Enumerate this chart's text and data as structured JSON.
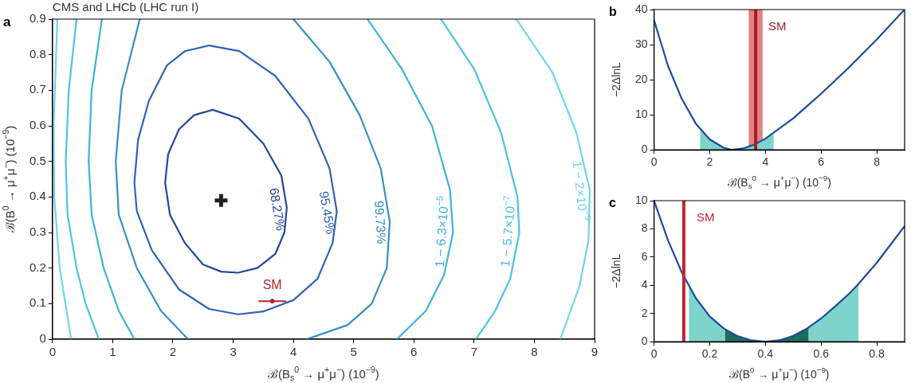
{
  "chart_data": [
    {
      "type": "line",
      "title": "CMS and LHCb (LHC run I)",
      "annotations": [
        "a"
      ],
      "xlabel": "ℬ(B$_{s}$$^{0}$ → μ$^{+}$μ$^{−}$) (10$^{−9}$)",
      "ylabel": "ℬ(B$^{0}$ → μ$^{+}$μ$^{−}$) (10$^{−9}$)",
      "xlim": [
        0,
        9
      ],
      "xticks": [
        0,
        1,
        2,
        3,
        4,
        5,
        6,
        7,
        8,
        9
      ],
      "ylim": [
        0,
        0.9
      ],
      "yticks": [
        0,
        0.1,
        0.2,
        0.3,
        0.4,
        0.5,
        0.6,
        0.7,
        0.8,
        0.9
      ],
      "marker": "none",
      "line_style": "solid",
      "series": [
        {
          "name": "68.27%",
          "color": "#23489a",
          "x": [
            1.87,
            1.92,
            2.1,
            2.35,
            2.66,
            3.1,
            3.5,
            3.8,
            3.89,
            null,
            1.87,
            1.95,
            2.2,
            2.5,
            2.8,
            3.08,
            3.4,
            3.7,
            3.85,
            3.89
          ],
          "values": [
            0.44,
            0.52,
            0.59,
            0.63,
            0.645,
            0.62,
            0.55,
            0.46,
            0.37,
            null,
            0.44,
            0.35,
            0.27,
            0.21,
            0.19,
            0.187,
            0.2,
            0.24,
            0.3,
            0.37
          ]
        },
        {
          "name": "95.45%",
          "color": "#2f63b4",
          "x": [
            1.36,
            1.42,
            1.6,
            1.9,
            2.2,
            2.6,
            3.1,
            3.7,
            4.25,
            4.6,
            4.72,
            null,
            1.36,
            1.4,
            1.65,
            2.1,
            2.6,
            3.08,
            3.5,
            4.0,
            4.4,
            4.65,
            4.72
          ],
          "values": [
            0.44,
            0.56,
            0.67,
            0.77,
            0.81,
            0.826,
            0.81,
            0.74,
            0.62,
            0.48,
            0.36,
            null,
            0.44,
            0.36,
            0.25,
            0.14,
            0.085,
            0.07,
            0.078,
            0.11,
            0.17,
            0.27,
            0.36
          ]
        },
        {
          "name": "99.73%",
          "color": "#3690c7",
          "x": [
            1.45,
            1.15,
            1.05,
            1.1,
            1.4,
            1.8,
            2.25,
            null,
            4.0,
            4.6,
            5.1,
            5.45,
            5.6,
            5.55,
            5.3,
            4.9,
            4.22
          ],
          "values": [
            0.9,
            0.7,
            0.5,
            0.35,
            0.2,
            0.08,
            0,
            null,
            0.9,
            0.78,
            0.63,
            0.48,
            0.33,
            0.2,
            0.1,
            0.04,
            0
          ]
        },
        {
          "name": "1 − 6.3×10$^{−5}$",
          "color": "#3fb2de",
          "x": [
            0.82,
            0.65,
            0.6,
            0.65,
            0.85,
            1.1,
            1.36,
            null,
            5.23,
            5.8,
            6.3,
            6.6,
            6.65,
            6.5,
            6.2,
            5.72
          ],
          "values": [
            0.9,
            0.7,
            0.5,
            0.35,
            0.2,
            0.08,
            0,
            null,
            0.9,
            0.76,
            0.6,
            0.42,
            0.3,
            0.18,
            0.08,
            0
          ]
        },
        {
          "name": "1 − 5.7×10$^{−7}$",
          "color": "#4cc2ea",
          "x": [
            0.4,
            0.27,
            0.22,
            0.25,
            0.4,
            0.55,
            0.77,
            null,
            6.45,
            7.0,
            7.45,
            7.72,
            7.75,
            7.6,
            7.35,
            7.03
          ],
          "values": [
            0.9,
            0.7,
            0.5,
            0.35,
            0.2,
            0.1,
            0,
            null,
            0.9,
            0.76,
            0.58,
            0.4,
            0.3,
            0.17,
            0.08,
            0
          ]
        },
        {
          "name": "1 − 2×10$^{−9}$",
          "color": "#70d3f0",
          "x": [
            0.08,
            0.02,
            0.03,
            0.12,
            0.31,
            null,
            7.7,
            8.3,
            8.7,
            8.92,
            8.9,
            8.75,
            8.43
          ],
          "values": [
            0.9,
            0.6,
            0.4,
            0.2,
            0,
            null,
            0.9,
            0.75,
            0.58,
            0.42,
            0.28,
            0.15,
            0
          ]
        },
        {
          "type": "scatter",
          "marker": "cross",
          "color": "#222222",
          "x": [
            2.8
          ],
          "values": [
            0.39
          ]
        },
        {
          "type": "scatter",
          "name": "SM",
          "marker": "circle",
          "color": "#b5262b",
          "x": [
            3.65
          ],
          "values": [
            0.107
          ],
          "xerrors": [
            0.23
          ],
          "errors": [
            0.006
          ]
        }
      ]
    },
    {
      "type": "line",
      "annotations": [
        "b"
      ],
      "xlabel": "ℬ(B$_{s}$$^{0}$ → μ$^{+}$μ$^{−}$) (10$^{−9}$)",
      "ylabel": "−2ΔlnL",
      "xlim": [
        0,
        9
      ],
      "xticks": [
        0,
        2,
        4,
        6,
        8
      ],
      "ylim": [
        0,
        40
      ],
      "yticks": [
        0,
        10,
        20,
        30,
        40
      ],
      "marker": "none",
      "bands": [
        {
          "axis": "x",
          "from": 3.4,
          "to": 3.9,
          "color": "#e06a6d"
        }
      ],
      "ref_lines": [
        {
          "axis": "x",
          "value": 3.65,
          "label": "SM",
          "color": "#a51d22"
        }
      ],
      "series": [
        {
          "type": "area",
          "color": "#7ed3ca",
          "x": [
            1.65,
            2,
            2.5,
            2.8,
            3.2,
            3.6,
            4,
            4.3
          ],
          "values": [
            6.2,
            3,
            0.6,
            0,
            0.4,
            1.5,
            3.2,
            4.5
          ]
        },
        {
          "color": "#1d4c9c",
          "x": [
            0,
            0.5,
            1,
            1.5,
            2,
            2.5,
            2.8,
            3.2,
            3.6,
            4,
            5,
            6,
            7,
            8,
            9
          ],
          "values": [
            37,
            24,
            14.5,
            7.5,
            3,
            0.6,
            0,
            0.4,
            1.5,
            3.2,
            9,
            16,
            23.5,
            31.5,
            40
          ]
        }
      ]
    },
    {
      "type": "line",
      "annotations": [
        "c"
      ],
      "xlabel": "ℬ(B$^{0}$ → μ$^{+}$μ$^{−}$) (10$^{−9}$)",
      "ylabel": "−2ΔlnL",
      "xlim": [
        0,
        0.9
      ],
      "xticks": [
        0,
        0.2,
        0.4,
        0.6,
        0.8
      ],
      "ylim": [
        0,
        10
      ],
      "yticks": [
        0,
        2,
        4,
        6,
        8,
        10
      ],
      "marker": "none",
      "ref_lines": [
        {
          "axis": "x",
          "value": 0.107,
          "label": "SM",
          "color": "#c0282d"
        }
      ],
      "series": [
        {
          "type": "area",
          "color": "#7ed3ca",
          "x": [
            0.125,
            0.15,
            0.2,
            0.25,
            0.3,
            0.35,
            0.4,
            0.45,
            0.5,
            0.55,
            0.6,
            0.65,
            0.7,
            0.735
          ],
          "values": [
            3.95,
            3.1,
            1.8,
            0.95,
            0.4,
            0.1,
            0,
            0.1,
            0.42,
            0.95,
            1.65,
            2.5,
            3.4,
            4.1
          ]
        },
        {
          "type": "area",
          "color": "#1f6b5e",
          "x": [
            0.255,
            0.3,
            0.35,
            0.4,
            0.45,
            0.5,
            0.555
          ],
          "values": [
            0.9,
            0.4,
            0.1,
            0,
            0.1,
            0.42,
            1
          ]
        },
        {
          "color": "#1d4c9c",
          "x": [
            0,
            0.05,
            0.1,
            0.15,
            0.2,
            0.25,
            0.3,
            0.35,
            0.4,
            0.45,
            0.5,
            0.55,
            0.6,
            0.65,
            0.7,
            0.73,
            0.8,
            0.9
          ],
          "values": [
            10,
            7.2,
            4.9,
            3.1,
            1.8,
            0.95,
            0.4,
            0.1,
            0,
            0.1,
            0.42,
            0.95,
            1.65,
            2.5,
            3.4,
            4,
            5.6,
            8.2
          ]
        }
      ]
    }
  ]
}
